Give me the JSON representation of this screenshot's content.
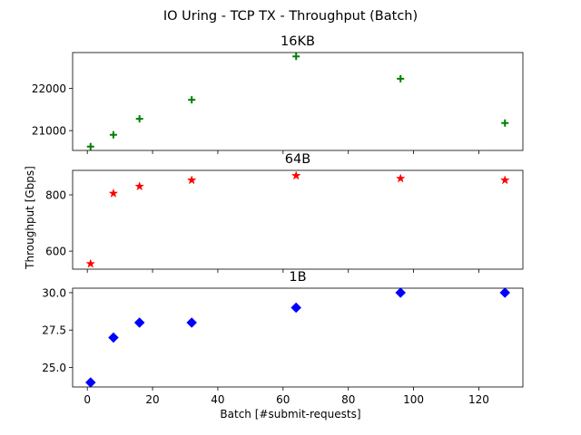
{
  "chart_data": {
    "type": "scatter",
    "title": "IO Uring - TCP TX - Throughput (Batch)",
    "xlabel": "Batch [#submit-requests]",
    "ylabel": "Throughput [Gbps]",
    "x": [
      1,
      8,
      16,
      32,
      64,
      96,
      128
    ],
    "xlim": [
      -4.5,
      133.5
    ],
    "xticks": [
      0,
      20,
      40,
      60,
      80,
      100,
      120
    ],
    "shared_x": true,
    "grid": false,
    "panels": [
      {
        "title": "16KB",
        "color": "#008000",
        "marker": "plus",
        "values": [
          20620,
          20900,
          21280,
          21730,
          22760,
          22230,
          21180
        ],
        "ylim": [
          20530,
          22850
        ],
        "yticks": [
          21000,
          22000
        ],
        "ytick_labels": [
          "21000",
          "22000"
        ]
      },
      {
        "title": "64B",
        "color": "#ff0000",
        "marker": "star",
        "values": [
          555,
          805,
          830,
          852,
          868,
          858,
          852
        ],
        "ylim": [
          536,
          887
        ],
        "yticks": [
          600,
          800
        ],
        "ytick_labels": [
          "600",
          "800"
        ]
      },
      {
        "title": "1B",
        "color": "#0000ff",
        "marker": "diamond",
        "values": [
          24.0,
          27.0,
          28.0,
          28.0,
          29.0,
          30.0,
          30.0
        ],
        "ylim": [
          23.7,
          30.3
        ],
        "yticks": [
          25.0,
          27.5,
          30.0
        ],
        "ytick_labels": [
          "25.0",
          "27.5",
          "30.0"
        ]
      }
    ]
  }
}
